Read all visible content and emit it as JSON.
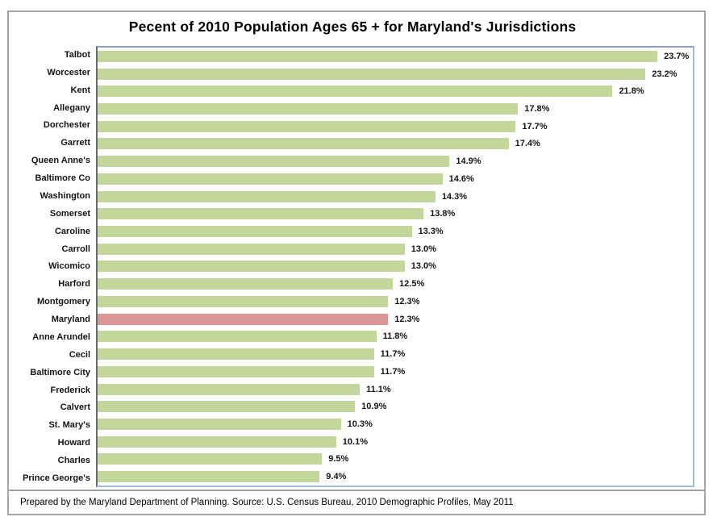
{
  "title": "Pecent of 2010 Population Ages 65 + for Maryland's Jurisdictions",
  "footer": "Prepared by the Maryland Department of Planning.  Source: U.S. Census Bureau, 2010 Demographic Profiles, May 2011",
  "colors": {
    "bar": "#C3D69B",
    "highlight_bar": "#D99694",
    "plot_border": "#A4BADA",
    "axis_line": "#6A6A6A",
    "frame_border": "#A6A6A6"
  },
  "chart_data": {
    "type": "bar",
    "orientation": "horizontal",
    "title": "Pecent of 2010 Population Ages 65 + for Maryland's Jurisdictions",
    "xlabel": "",
    "ylabel": "",
    "xlim": [
      0,
      25.2
    ],
    "grid": false,
    "legend": false,
    "categories": [
      "Talbot",
      "Worcester",
      "Kent",
      "Allegany",
      "Dorchester",
      "Garrett",
      "Queen Anne's",
      "Baltimore Co",
      "Washington",
      "Somerset",
      "Caroline",
      "Carroll",
      "Wicomico",
      "Harford",
      "Montgomery",
      "Maryland",
      "Anne Arundel",
      "Cecil",
      "Baltimore City",
      "Frederick",
      "Calvert",
      "St. Mary's",
      "Howard",
      "Charles",
      "Prince George's"
    ],
    "values": [
      23.7,
      23.2,
      21.8,
      17.8,
      17.7,
      17.4,
      14.9,
      14.6,
      14.3,
      13.8,
      13.3,
      13.0,
      13.0,
      12.5,
      12.3,
      12.3,
      11.8,
      11.7,
      11.7,
      11.1,
      10.9,
      10.3,
      10.1,
      9.5,
      9.4
    ],
    "value_labels": [
      "23.7%",
      "23.2%",
      "21.8%",
      "17.8%",
      "17.7%",
      "17.4%",
      "14.9%",
      "14.6%",
      "14.3%",
      "13.8%",
      "13.3%",
      "13.0%",
      "13.0%",
      "12.5%",
      "12.3%",
      "12.3%",
      "11.8%",
      "11.7%",
      "11.7%",
      "11.1%",
      "10.9%",
      "10.3%",
      "10.1%",
      "9.5%",
      "9.4%"
    ],
    "highlight_category": "Maryland",
    "series_color": "#C3D69B",
    "highlight_color": "#D99694"
  }
}
